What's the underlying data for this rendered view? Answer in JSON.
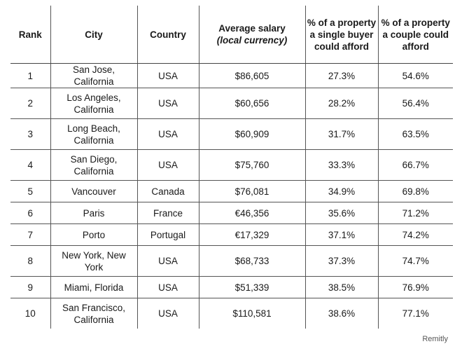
{
  "headers": {
    "rank": "Rank",
    "city": "City",
    "country": "Country",
    "salary": "Average salary",
    "salary_sub": "(local currency)",
    "single": "% of a property a single buyer could afford",
    "couple": "% of a property a couple could afford"
  },
  "rows": [
    {
      "rank": "1",
      "city": "San Jose, California",
      "country": "USA",
      "salary": "$86,605",
      "single": "27.3%",
      "couple": "54.6%"
    },
    {
      "rank": "2",
      "city": "Los Angeles, California",
      "country": "USA",
      "salary": "$60,656",
      "single": "28.2%",
      "couple": "56.4%"
    },
    {
      "rank": "3",
      "city": "Long Beach, California",
      "country": "USA",
      "salary": "$60,909",
      "single": "31.7%",
      "couple": "63.5%"
    },
    {
      "rank": "4",
      "city": "San Diego, California",
      "country": "USA",
      "salary": "$75,760",
      "single": "33.3%",
      "couple": "66.7%"
    },
    {
      "rank": "5",
      "city": "Vancouver",
      "country": "Canada",
      "salary": "$76,081",
      "single": "34.9%",
      "couple": "69.8%"
    },
    {
      "rank": "6",
      "city": "Paris",
      "country": "France",
      "salary": "€46,356",
      "single": "35.6%",
      "couple": "71.2%"
    },
    {
      "rank": "7",
      "city": "Porto",
      "country": "Portugal",
      "salary": "€17,329",
      "single": "37.1%",
      "couple": "74.2%"
    },
    {
      "rank": "8",
      "city": "New York, New York",
      "country": "USA",
      "salary": "$68,733",
      "single": "37.3%",
      "couple": "74.7%"
    },
    {
      "rank": "9",
      "city": "Miami, Florida",
      "country": "USA",
      "salary": "$51,339",
      "single": "38.5%",
      "couple": "76.9%"
    },
    {
      "rank": "10",
      "city": "San Francisco, California",
      "country": "USA",
      "salary": "$110,581",
      "single": "38.6%",
      "couple": "77.1%"
    }
  ],
  "brand": "Remitly"
}
